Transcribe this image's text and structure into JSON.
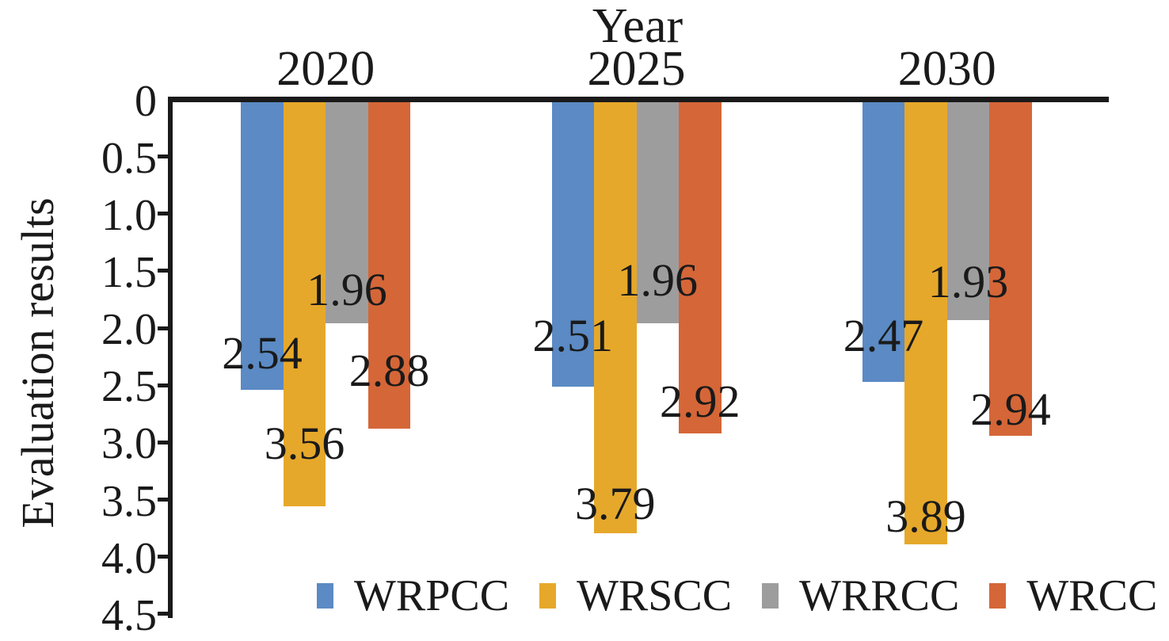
{
  "chart_data": {
    "type": "bar",
    "orientation": "vertical_hanging_from_top",
    "title": "",
    "xlabel": "Year",
    "ylabel": "Evaluation results",
    "categories": [
      "2020",
      "2025",
      "2030"
    ],
    "series": [
      {
        "name": "WRPCC",
        "color": "#5B8AC4",
        "values": [
          2.54,
          2.51,
          2.47
        ]
      },
      {
        "name": "WRSCC",
        "color": "#E6A82A",
        "values": [
          3.56,
          3.79,
          3.89
        ]
      },
      {
        "name": "WRRCC",
        "color": "#9D9D9E",
        "values": [
          1.96,
          1.96,
          1.93
        ]
      },
      {
        "name": "WRCC",
        "color": "#D56638",
        "values": [
          2.88,
          2.92,
          2.94
        ]
      }
    ],
    "y_axis": {
      "min": 0,
      "max": 4.5,
      "step": 0.5,
      "inverted": true,
      "tick_labels": [
        "0",
        "0.5",
        "1.0",
        "1.5",
        "2.0",
        "2.5",
        "3.0",
        "3.5",
        "4.0",
        "4.5"
      ]
    },
    "value_labels_shown": true,
    "grid": false,
    "legend_position": "bottom-center",
    "axis_color": "#1A1A1A",
    "text_color": "#1A1A1A",
    "background_color": "#FFFFFF"
  }
}
